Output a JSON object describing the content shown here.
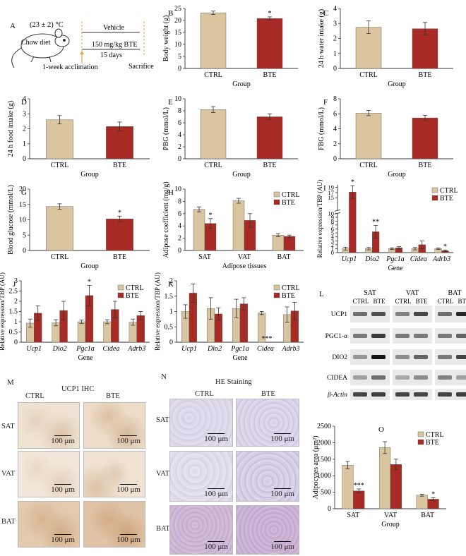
{
  "colors": {
    "ctrl": "#d9c59f",
    "bte": "#a72a24",
    "axis": "#333333",
    "ihc_bg": "#efe2d2",
    "he_bg": "#dcd6ea",
    "he_bat": "#cdb6d6"
  },
  "legend": {
    "ctrl": "CTRL",
    "bte": "BTE"
  },
  "panel_a": {
    "letter": "A",
    "temp": "(23 ± 2) °C",
    "diet": "Chow diet",
    "vehicle": "Vehicle",
    "dose": "150 mg/kg BTE",
    "days": "15 days",
    "acclimation": "1-week acclimation",
    "sacrifice": "Sacrifice"
  },
  "chart_data": [
    {
      "id": "B",
      "letter": "B",
      "type": "bar",
      "categories": [
        "CTRL",
        "BTE"
      ],
      "values": [
        23.2,
        20.8
      ],
      "errors": [
        0.7,
        0.7
      ],
      "ylim": [
        0,
        25
      ],
      "yticks": [
        0,
        5,
        10,
        15,
        20,
        25
      ],
      "ylabel": "Body weight (g)",
      "xlabel": "Group",
      "sig": [
        "",
        "*"
      ]
    },
    {
      "id": "C",
      "letter": "C",
      "type": "bar",
      "categories": [
        "CTRL",
        "BTE"
      ],
      "values": [
        2.75,
        2.65
      ],
      "errors": [
        0.42,
        0.42
      ],
      "ylim": [
        0,
        4
      ],
      "yticks": [
        0,
        1,
        2,
        3,
        4
      ],
      "ylabel": "24 h water intake (g)",
      "xlabel": "Group",
      "sig": [
        "",
        ""
      ]
    },
    {
      "id": "D",
      "letter": "D",
      "type": "bar",
      "categories": [
        "CTRL",
        "BTE"
      ],
      "values": [
        2.6,
        2.15
      ],
      "errors": [
        0.28,
        0.3
      ],
      "ylim": [
        0,
        4
      ],
      "yticks": [
        0,
        1,
        2,
        3,
        4
      ],
      "ylabel": "24 h food intake (g)",
      "xlabel": "Group",
      "sig": [
        "",
        ""
      ]
    },
    {
      "id": "E",
      "letter": "E",
      "type": "bar",
      "categories": [
        "CTRL",
        "BTE"
      ],
      "values": [
        8.2,
        7.0
      ],
      "errors": [
        0.5,
        0.5
      ],
      "ylim": [
        0,
        10
      ],
      "yticks": [
        0,
        2,
        4,
        6,
        8,
        10
      ],
      "ylabel": "PBG (mmol/L)",
      "xlabel": "Group",
      "sig": [
        "",
        ""
      ]
    },
    {
      "id": "F",
      "letter": "F",
      "type": "bar",
      "categories": [
        "CTRL",
        "BTE"
      ],
      "values": [
        6.1,
        5.45
      ],
      "errors": [
        0.35,
        0.35
      ],
      "ylim": [
        0,
        8
      ],
      "yticks": [
        0,
        2,
        4,
        6,
        8
      ],
      "ylabel": "FBG (mmol/L)",
      "xlabel": "Group",
      "sig": [
        "",
        ""
      ]
    },
    {
      "id": "G",
      "letter": "G",
      "type": "bar",
      "categories": [
        "CTRL",
        "BTE"
      ],
      "values": [
        14.3,
        10.3
      ],
      "errors": [
        0.9,
        0.9
      ],
      "ylim": [
        0,
        20
      ],
      "yticks": [
        0,
        5,
        10,
        15,
        20
      ],
      "ylabel": "Blood glucose (mmol/L)",
      "xlabel": "Group",
      "sig": [
        "",
        "*"
      ]
    },
    {
      "id": "H",
      "letter": "H",
      "type": "bar",
      "categories": [
        "SAT",
        "VAT",
        "BAT"
      ],
      "series": [
        {
          "name": "CTRL",
          "values": [
            6.7,
            8.1,
            2.5
          ],
          "errors": [
            0.4,
            0.4,
            0.25
          ]
        },
        {
          "name": "BTE",
          "values": [
            4.4,
            4.9,
            2.3
          ],
          "errors": [
            0.8,
            1.1,
            0.2
          ]
        }
      ],
      "ylim": [
        0,
        10
      ],
      "yticks": [
        0,
        2,
        4,
        6,
        8,
        10
      ],
      "ylabel": "Adipose coefficient (mg/g)",
      "xlabel": "Adipose tissues",
      "sig": [
        [
          "",
          "*"
        ],
        [
          "",
          ""
        ],
        [
          "",
          ""
        ]
      ]
    },
    {
      "id": "I",
      "letter": "I",
      "type": "bar",
      "broken": true,
      "categories": [
        "Ucp1",
        "Dio2",
        "Pgc1a",
        "Cidea",
        "Adrb3"
      ],
      "series": [
        {
          "name": "CTRL",
          "values": [
            1.0,
            1.0,
            1.0,
            1.0,
            1.0
          ],
          "errors": [
            0.35,
            0.3,
            0.2,
            0.3,
            0.2
          ]
        },
        {
          "name": "BTE",
          "values": [
            17.2,
            5.3,
            1.2,
            2.0,
            0.45
          ],
          "errors": [
            2.5,
            1.6,
            0.3,
            1.0,
            0.2
          ]
        }
      ],
      "ylim": [
        0,
        20
      ],
      "yticks": [
        0,
        1,
        2,
        3,
        4,
        5,
        6,
        7,
        8,
        9,
        10,
        15,
        17,
        19
      ],
      "break_at": 10,
      "ylabel": "Relative expression/TBP (AU)",
      "xlabel": "Gene",
      "sig": [
        [
          "",
          "*"
        ],
        [
          "",
          "**"
        ],
        [
          "",
          ""
        ],
        [
          "",
          ""
        ],
        [
          "",
          "*"
        ]
      ]
    },
    {
      "id": "J",
      "letter": "J",
      "type": "bar",
      "categories": [
        "Ucp1",
        "Dio2",
        "Pgc1a",
        "Cidea",
        "Adrb3"
      ],
      "series": [
        {
          "name": "CTRL",
          "values": [
            0.93,
            0.95,
            1.0,
            1.0,
            0.98
          ],
          "errors": [
            0.2,
            0.15,
            0.08,
            0.1,
            0.15
          ]
        },
        {
          "name": "BTE",
          "values": [
            1.42,
            1.55,
            2.28,
            1.6,
            1.3
          ],
          "errors": [
            0.35,
            0.45,
            0.5,
            0.4,
            0.2
          ]
        }
      ],
      "ylim": [
        0,
        3
      ],
      "yticks": [
        0,
        0.5,
        1,
        1.5,
        2,
        2.5,
        3
      ],
      "ylabel": "Relative expression/TBP (AU)",
      "xlabel": "Gene",
      "sig": [
        [
          "",
          ""
        ],
        [
          "",
          ""
        ],
        [
          "",
          "*"
        ],
        [
          "",
          ""
        ],
        [
          "",
          ""
        ]
      ]
    },
    {
      "id": "K",
      "letter": "K",
      "type": "bar",
      "categories": [
        "Ucp1",
        "Dio2",
        "Pgc1a",
        "Cidea",
        "Adrb3"
      ],
      "series": [
        {
          "name": "CTRL",
          "values": [
            1.0,
            1.1,
            1.1,
            0.95,
            0.9
          ],
          "errors": [
            0.22,
            0.35,
            0.3,
            0.05,
            0.25
          ]
        },
        {
          "name": "BTE",
          "values": [
            1.6,
            0.92,
            1.25,
            0.0,
            1.02
          ],
          "errors": [
            0.3,
            0.2,
            0.2,
            0.0,
            0.28
          ]
        }
      ],
      "ylim": [
        0,
        2
      ],
      "yticks": [
        0,
        0.5,
        1,
        1.5,
        2
      ],
      "ylabel": "Relative expression/TBP (AU)",
      "xlabel": "Gene",
      "sig": [
        [
          "",
          ""
        ],
        [
          "",
          ""
        ],
        [
          "",
          ""
        ],
        [
          "",
          "***"
        ],
        [
          "",
          ""
        ]
      ]
    },
    {
      "id": "O",
      "letter": "O",
      "type": "bar",
      "categories": [
        "SAT",
        "VAT",
        "BAT"
      ],
      "series": [
        {
          "name": "CTRL",
          "values": [
            1320,
            1850,
            410
          ],
          "errors": [
            110,
            180,
            30
          ]
        },
        {
          "name": "BTE",
          "values": [
            540,
            1340,
            290
          ],
          "errors": [
            60,
            160,
            40
          ]
        }
      ],
      "ylim": [
        0,
        2500
      ],
      "yticks": [
        0,
        500,
        1000,
        1500,
        2000,
        2500
      ],
      "ylabel": "Adipocytes area (μm²)",
      "xlabel": "Group",
      "sig": [
        [
          "",
          "***"
        ],
        [
          "",
          ""
        ],
        [
          "",
          "*"
        ]
      ]
    }
  ],
  "panel_l": {
    "letter": "L",
    "groups": [
      "SAT",
      "VAT",
      "BAT"
    ],
    "lanes": [
      "CTRL",
      "BTE"
    ],
    "proteins": [
      "UCP1",
      "PGC1-α",
      "DIO2",
      "CIDEA",
      "β-Actin"
    ],
    "intensity": [
      [
        0.55,
        0.7,
        0.45,
        0.75,
        0.55,
        0.9
      ],
      [
        0.5,
        0.8,
        0.5,
        0.5,
        0.5,
        0.6
      ],
      [
        0.35,
        1.0,
        0.4,
        0.6,
        0.5,
        0.75
      ],
      [
        0.3,
        0.55,
        0.25,
        0.4,
        0.45,
        0.3
      ],
      [
        0.75,
        0.8,
        0.75,
        0.75,
        0.75,
        0.8
      ]
    ]
  },
  "panel_m": {
    "letter": "M",
    "title": "UCP1 IHC",
    "cols": [
      "CTRL",
      "BTE"
    ],
    "rows": [
      "SAT",
      "VAT",
      "BAT"
    ],
    "scale": "100 μm"
  },
  "panel_n": {
    "letter": "N",
    "title": "HE Staining",
    "cols": [
      "CTRL",
      "BTE"
    ],
    "rows": [
      "SAT",
      "VAT",
      "BAT"
    ],
    "scale": "100 μm"
  }
}
